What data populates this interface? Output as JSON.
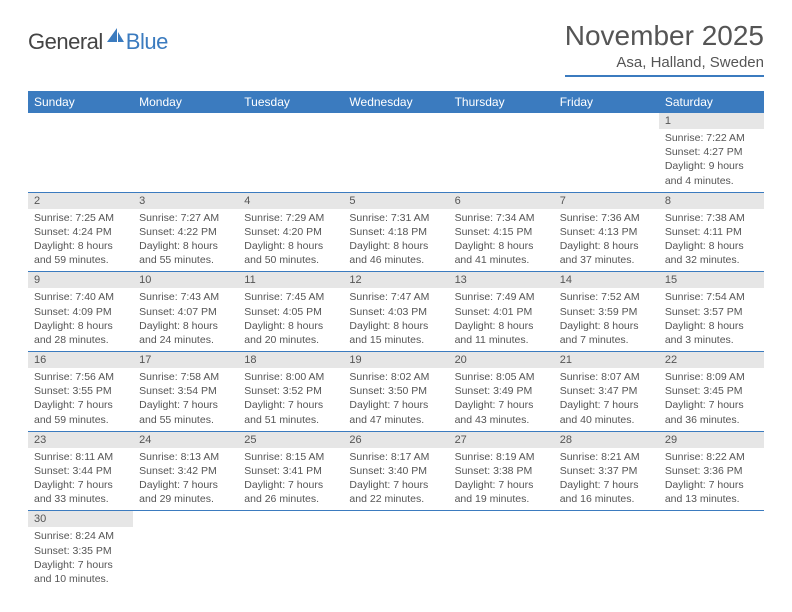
{
  "logo": {
    "part1": "General",
    "part2": "Blue"
  },
  "title": "November 2025",
  "location": "Asa, Halland, Sweden",
  "colors": {
    "header_bg": "#3b7bbf",
    "header_text": "#ffffff",
    "daynum_bg": "#e6e6e6",
    "text": "#555555",
    "border": "#3b7bbf"
  },
  "weekdays": [
    "Sunday",
    "Monday",
    "Tuesday",
    "Wednesday",
    "Thursday",
    "Friday",
    "Saturday"
  ],
  "weeks": [
    [
      null,
      null,
      null,
      null,
      null,
      null,
      {
        "n": "1",
        "sunrise": "Sunrise: 7:22 AM",
        "sunset": "Sunset: 4:27 PM",
        "day1": "Daylight: 9 hours",
        "day2": "and 4 minutes."
      }
    ],
    [
      {
        "n": "2",
        "sunrise": "Sunrise: 7:25 AM",
        "sunset": "Sunset: 4:24 PM",
        "day1": "Daylight: 8 hours",
        "day2": "and 59 minutes."
      },
      {
        "n": "3",
        "sunrise": "Sunrise: 7:27 AM",
        "sunset": "Sunset: 4:22 PM",
        "day1": "Daylight: 8 hours",
        "day2": "and 55 minutes."
      },
      {
        "n": "4",
        "sunrise": "Sunrise: 7:29 AM",
        "sunset": "Sunset: 4:20 PM",
        "day1": "Daylight: 8 hours",
        "day2": "and 50 minutes."
      },
      {
        "n": "5",
        "sunrise": "Sunrise: 7:31 AM",
        "sunset": "Sunset: 4:18 PM",
        "day1": "Daylight: 8 hours",
        "day2": "and 46 minutes."
      },
      {
        "n": "6",
        "sunrise": "Sunrise: 7:34 AM",
        "sunset": "Sunset: 4:15 PM",
        "day1": "Daylight: 8 hours",
        "day2": "and 41 minutes."
      },
      {
        "n": "7",
        "sunrise": "Sunrise: 7:36 AM",
        "sunset": "Sunset: 4:13 PM",
        "day1": "Daylight: 8 hours",
        "day2": "and 37 minutes."
      },
      {
        "n": "8",
        "sunrise": "Sunrise: 7:38 AM",
        "sunset": "Sunset: 4:11 PM",
        "day1": "Daylight: 8 hours",
        "day2": "and 32 minutes."
      }
    ],
    [
      {
        "n": "9",
        "sunrise": "Sunrise: 7:40 AM",
        "sunset": "Sunset: 4:09 PM",
        "day1": "Daylight: 8 hours",
        "day2": "and 28 minutes."
      },
      {
        "n": "10",
        "sunrise": "Sunrise: 7:43 AM",
        "sunset": "Sunset: 4:07 PM",
        "day1": "Daylight: 8 hours",
        "day2": "and 24 minutes."
      },
      {
        "n": "11",
        "sunrise": "Sunrise: 7:45 AM",
        "sunset": "Sunset: 4:05 PM",
        "day1": "Daylight: 8 hours",
        "day2": "and 20 minutes."
      },
      {
        "n": "12",
        "sunrise": "Sunrise: 7:47 AM",
        "sunset": "Sunset: 4:03 PM",
        "day1": "Daylight: 8 hours",
        "day2": "and 15 minutes."
      },
      {
        "n": "13",
        "sunrise": "Sunrise: 7:49 AM",
        "sunset": "Sunset: 4:01 PM",
        "day1": "Daylight: 8 hours",
        "day2": "and 11 minutes."
      },
      {
        "n": "14",
        "sunrise": "Sunrise: 7:52 AM",
        "sunset": "Sunset: 3:59 PM",
        "day1": "Daylight: 8 hours",
        "day2": "and 7 minutes."
      },
      {
        "n": "15",
        "sunrise": "Sunrise: 7:54 AM",
        "sunset": "Sunset: 3:57 PM",
        "day1": "Daylight: 8 hours",
        "day2": "and 3 minutes."
      }
    ],
    [
      {
        "n": "16",
        "sunrise": "Sunrise: 7:56 AM",
        "sunset": "Sunset: 3:55 PM",
        "day1": "Daylight: 7 hours",
        "day2": "and 59 minutes."
      },
      {
        "n": "17",
        "sunrise": "Sunrise: 7:58 AM",
        "sunset": "Sunset: 3:54 PM",
        "day1": "Daylight: 7 hours",
        "day2": "and 55 minutes."
      },
      {
        "n": "18",
        "sunrise": "Sunrise: 8:00 AM",
        "sunset": "Sunset: 3:52 PM",
        "day1": "Daylight: 7 hours",
        "day2": "and 51 minutes."
      },
      {
        "n": "19",
        "sunrise": "Sunrise: 8:02 AM",
        "sunset": "Sunset: 3:50 PM",
        "day1": "Daylight: 7 hours",
        "day2": "and 47 minutes."
      },
      {
        "n": "20",
        "sunrise": "Sunrise: 8:05 AM",
        "sunset": "Sunset: 3:49 PM",
        "day1": "Daylight: 7 hours",
        "day2": "and 43 minutes."
      },
      {
        "n": "21",
        "sunrise": "Sunrise: 8:07 AM",
        "sunset": "Sunset: 3:47 PM",
        "day1": "Daylight: 7 hours",
        "day2": "and 40 minutes."
      },
      {
        "n": "22",
        "sunrise": "Sunrise: 8:09 AM",
        "sunset": "Sunset: 3:45 PM",
        "day1": "Daylight: 7 hours",
        "day2": "and 36 minutes."
      }
    ],
    [
      {
        "n": "23",
        "sunrise": "Sunrise: 8:11 AM",
        "sunset": "Sunset: 3:44 PM",
        "day1": "Daylight: 7 hours",
        "day2": "and 33 minutes."
      },
      {
        "n": "24",
        "sunrise": "Sunrise: 8:13 AM",
        "sunset": "Sunset: 3:42 PM",
        "day1": "Daylight: 7 hours",
        "day2": "and 29 minutes."
      },
      {
        "n": "25",
        "sunrise": "Sunrise: 8:15 AM",
        "sunset": "Sunset: 3:41 PM",
        "day1": "Daylight: 7 hours",
        "day2": "and 26 minutes."
      },
      {
        "n": "26",
        "sunrise": "Sunrise: 8:17 AM",
        "sunset": "Sunset: 3:40 PM",
        "day1": "Daylight: 7 hours",
        "day2": "and 22 minutes."
      },
      {
        "n": "27",
        "sunrise": "Sunrise: 8:19 AM",
        "sunset": "Sunset: 3:38 PM",
        "day1": "Daylight: 7 hours",
        "day2": "and 19 minutes."
      },
      {
        "n": "28",
        "sunrise": "Sunrise: 8:21 AM",
        "sunset": "Sunset: 3:37 PM",
        "day1": "Daylight: 7 hours",
        "day2": "and 16 minutes."
      },
      {
        "n": "29",
        "sunrise": "Sunrise: 8:22 AM",
        "sunset": "Sunset: 3:36 PM",
        "day1": "Daylight: 7 hours",
        "day2": "and 13 minutes."
      }
    ],
    [
      {
        "n": "30",
        "sunrise": "Sunrise: 8:24 AM",
        "sunset": "Sunset: 3:35 PM",
        "day1": "Daylight: 7 hours",
        "day2": "and 10 minutes."
      },
      null,
      null,
      null,
      null,
      null,
      null
    ]
  ]
}
